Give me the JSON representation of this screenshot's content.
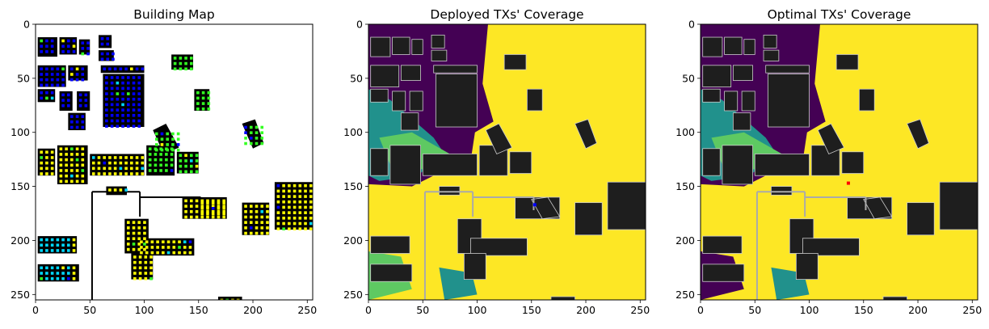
{
  "chart_data": [
    {
      "type": "heatmap",
      "title": "Building Map",
      "x_ticks": [
        0,
        50,
        100,
        150,
        200,
        250
      ],
      "y_ticks": [
        0,
        50,
        100,
        150,
        200,
        250
      ],
      "xlim": [
        0,
        255
      ],
      "ylim": [
        255,
        0
      ],
      "background": "#ffffff",
      "building_color": "#000000",
      "marker_colors": [
        "#0000ff",
        "#00d8ff",
        "#33ff22",
        "#ffff00"
      ]
    },
    {
      "type": "heatmap",
      "title": "Deployed TXs' Coverage",
      "x_ticks": [
        0,
        50,
        100,
        150,
        200,
        250
      ],
      "y_ticks": [
        0,
        50,
        100,
        150,
        200,
        250
      ],
      "xlim": [
        0,
        255
      ],
      "ylim": [
        255,
        0
      ],
      "colormap": [
        "#440154",
        "#21918c",
        "#5ec962",
        "#fde725"
      ],
      "building_color": "#1e1e1e",
      "tx_marker_color": "#0000ff"
    },
    {
      "type": "heatmap",
      "title": "Optimal TXs' Coverage",
      "x_ticks": [
        0,
        50,
        100,
        150,
        200,
        250
      ],
      "y_ticks": [
        0,
        50,
        100,
        150,
        200,
        250
      ],
      "xlim": [
        0,
        255
      ],
      "ylim": [
        255,
        0
      ],
      "colormap": [
        "#440154",
        "#21918c",
        "#5ec962",
        "#fde725"
      ],
      "building_color": "#1e1e1e",
      "tx_marker_color": "#ff0000"
    }
  ]
}
